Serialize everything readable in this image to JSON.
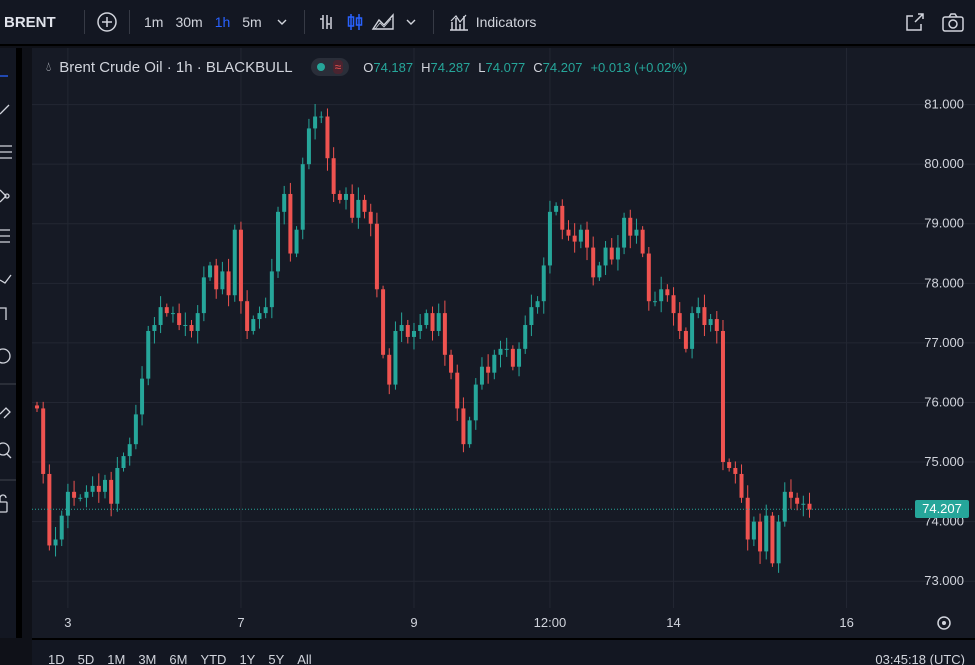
{
  "toolbar": {
    "symbol": "BRENT",
    "timeframes": [
      {
        "label": "1m",
        "active": false
      },
      {
        "label": "30m",
        "active": false
      },
      {
        "label": "1h",
        "active": true
      },
      {
        "label": "5m",
        "active": false
      }
    ],
    "indicators_label": "Indicators",
    "icons": [
      "add-symbol-icon",
      "chevron-down-icon",
      "bar-chart-icon",
      "candle-chart-icon",
      "area-chart-icon",
      "chevron-down-icon",
      "indicators-icon",
      "fullscreen-icon",
      "camera-icon"
    ]
  },
  "legend": {
    "title": "Brent Crude Oil · 1h · BLACKBULL",
    "open_key": "O",
    "open": "74.187",
    "high_key": "H",
    "high": "74.287",
    "low_key": "L",
    "low": "74.077",
    "close_key": "C",
    "close": "74.207",
    "change": "+0.013 (+0.02%)"
  },
  "last_price": "74.207",
  "bottom": {
    "ranges": [
      "1D",
      "5D",
      "1M",
      "3M",
      "6M",
      "YTD",
      "1Y",
      "5Y",
      "All"
    ],
    "clock": "03:45:18 (UTC)"
  },
  "colors": {
    "up": "#26a69a",
    "down": "#ef5350",
    "grid": "#232733",
    "background": "#161a25",
    "text": "#d1d4dc"
  },
  "chart_data": {
    "type": "candlestick",
    "title": "Brent Crude Oil · 1h · BLACKBULL",
    "x_tick_labels": [
      {
        "label": "3",
        "index": 5
      },
      {
        "label": "7",
        "index": 33
      },
      {
        "label": "9",
        "index": 61
      },
      {
        "label": "12:00",
        "index": 83
      },
      {
        "label": "14",
        "index": 103
      },
      {
        "label": "16",
        "index": 131
      }
    ],
    "y_tick_labels": [
      "81.000",
      "80.000",
      "79.000",
      "78.000",
      "77.000",
      "76.000",
      "75.000",
      "74.000",
      "73.000"
    ],
    "ylim": [
      72.55,
      81.95
    ],
    "grid": true,
    "last_price": 74.207,
    "close_series": [
      75.9,
      74.8,
      73.6,
      73.7,
      74.1,
      74.5,
      74.4,
      74.4,
      74.5,
      74.6,
      74.5,
      74.7,
      74.3,
      74.9,
      75.1,
      75.3,
      75.8,
      76.4,
      77.2,
      77.3,
      77.6,
      77.5,
      77.5,
      77.3,
      77.3,
      77.2,
      77.5,
      78.1,
      78.3,
      77.9,
      78.2,
      77.8,
      78.9,
      77.7,
      77.2,
      77.4,
      77.5,
      77.6,
      78.2,
      79.2,
      79.5,
      78.5,
      78.9,
      80.0,
      80.6,
      80.8,
      80.8,
      80.1,
      79.5,
      79.4,
      79.5,
      79.1,
      79.4,
      79.2,
      79.0,
      77.9,
      76.8,
      76.3,
      77.2,
      77.3,
      77.1,
      77.2,
      77.3,
      77.5,
      77.2,
      77.5,
      76.8,
      76.5,
      75.9,
      75.3,
      75.7,
      76.3,
      76.6,
      76.5,
      76.8,
      76.9,
      76.9,
      76.6,
      76.9,
      77.3,
      77.6,
      77.7,
      78.3,
      79.2,
      79.3,
      78.9,
      78.8,
      78.7,
      78.9,
      78.6,
      78.1,
      78.3,
      78.6,
      78.4,
      78.6,
      79.1,
      78.8,
      78.9,
      78.5,
      77.7,
      77.7,
      77.9,
      77.8,
      77.5,
      77.2,
      76.9,
      77.5,
      77.6,
      77.3,
      77.4,
      77.2,
      75.0,
      74.9,
      74.8,
      74.4,
      73.7,
      74.0,
      73.5,
      74.1,
      73.3,
      74.0,
      74.5,
      74.4,
      74.3,
      74.3,
      74.2
    ]
  }
}
